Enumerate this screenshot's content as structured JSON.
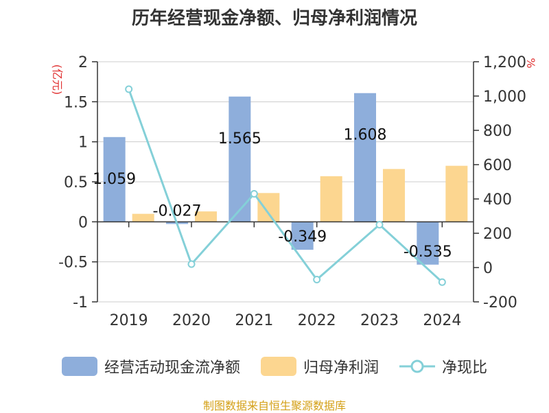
{
  "chart_data": {
    "type": "bar",
    "title": "历年经营现金净额、归母净利润情况",
    "categories": [
      "2019",
      "2020",
      "2021",
      "2022",
      "2023",
      "2024"
    ],
    "y_left": {
      "unit": "(亿元)",
      "range": [
        -1,
        2
      ],
      "ticks": [
        "2",
        "1.5",
        "1",
        "0.5",
        "0",
        "-0.5",
        "-1"
      ]
    },
    "y_right": {
      "unit": "%",
      "range": [
        -200,
        1200
      ],
      "ticks": [
        "1,200",
        "1,000",
        "800",
        "600",
        "400",
        "200",
        "0",
        "-200"
      ]
    },
    "series": [
      {
        "name": "经营活动现金流净额",
        "type": "bar",
        "axis": "left",
        "color": "#8eaedb",
        "values": [
          1.059,
          -0.027,
          1.565,
          -0.349,
          1.608,
          -0.535
        ],
        "labels": [
          "1.059",
          "-0.027",
          "1.565",
          "-0.349",
          "1.608",
          "-0.535"
        ]
      },
      {
        "name": "归母净利润",
        "type": "bar",
        "axis": "left",
        "color": "#fcd690",
        "values": [
          0.1,
          0.13,
          0.36,
          0.57,
          0.66,
          0.7
        ]
      },
      {
        "name": "净现比",
        "type": "line",
        "axis": "right",
        "color": "#84d0d8",
        "values": [
          1040,
          20,
          430,
          -70,
          250,
          -85
        ]
      }
    ]
  },
  "source": "制图数据来自恒生聚源数据库"
}
